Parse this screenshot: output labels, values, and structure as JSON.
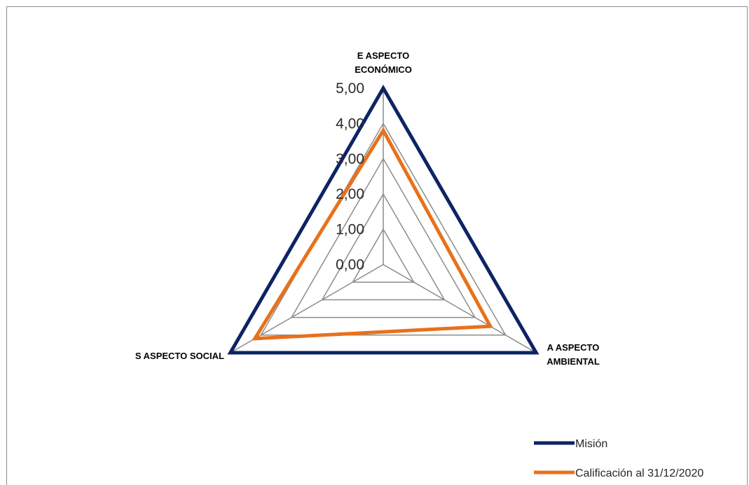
{
  "chart_data": {
    "type": "radar",
    "axes": [
      "E ASPECTO ECONÓMICO",
      "A ASPECTO AMBIENTAL",
      "S ASPECTO SOCIAL"
    ],
    "axis_label_lines": [
      [
        "E ASPECTO",
        "ECONÓMICO"
      ],
      [
        "A ASPECTO",
        "AMBIENTAL"
      ],
      [
        "S ASPECTO SOCIAL"
      ]
    ],
    "rlim": [
      0,
      5
    ],
    "ticks": [
      0,
      1,
      2,
      3,
      4,
      5
    ],
    "tick_labels": [
      "0,00",
      "1,00",
      "2,00",
      "3,00",
      "4,00",
      "5,00"
    ],
    "grid": true,
    "legend_position": "bottom-right",
    "series": [
      {
        "name": "Misión",
        "values": [
          5,
          5,
          5
        ],
        "color": "#0d2366"
      },
      {
        "name": "Calificación al 31/12/2020",
        "values": [
          3.8,
          3.5,
          4.2
        ],
        "color": "#e8711b"
      }
    ],
    "grid_color": "#8c8c8c"
  }
}
